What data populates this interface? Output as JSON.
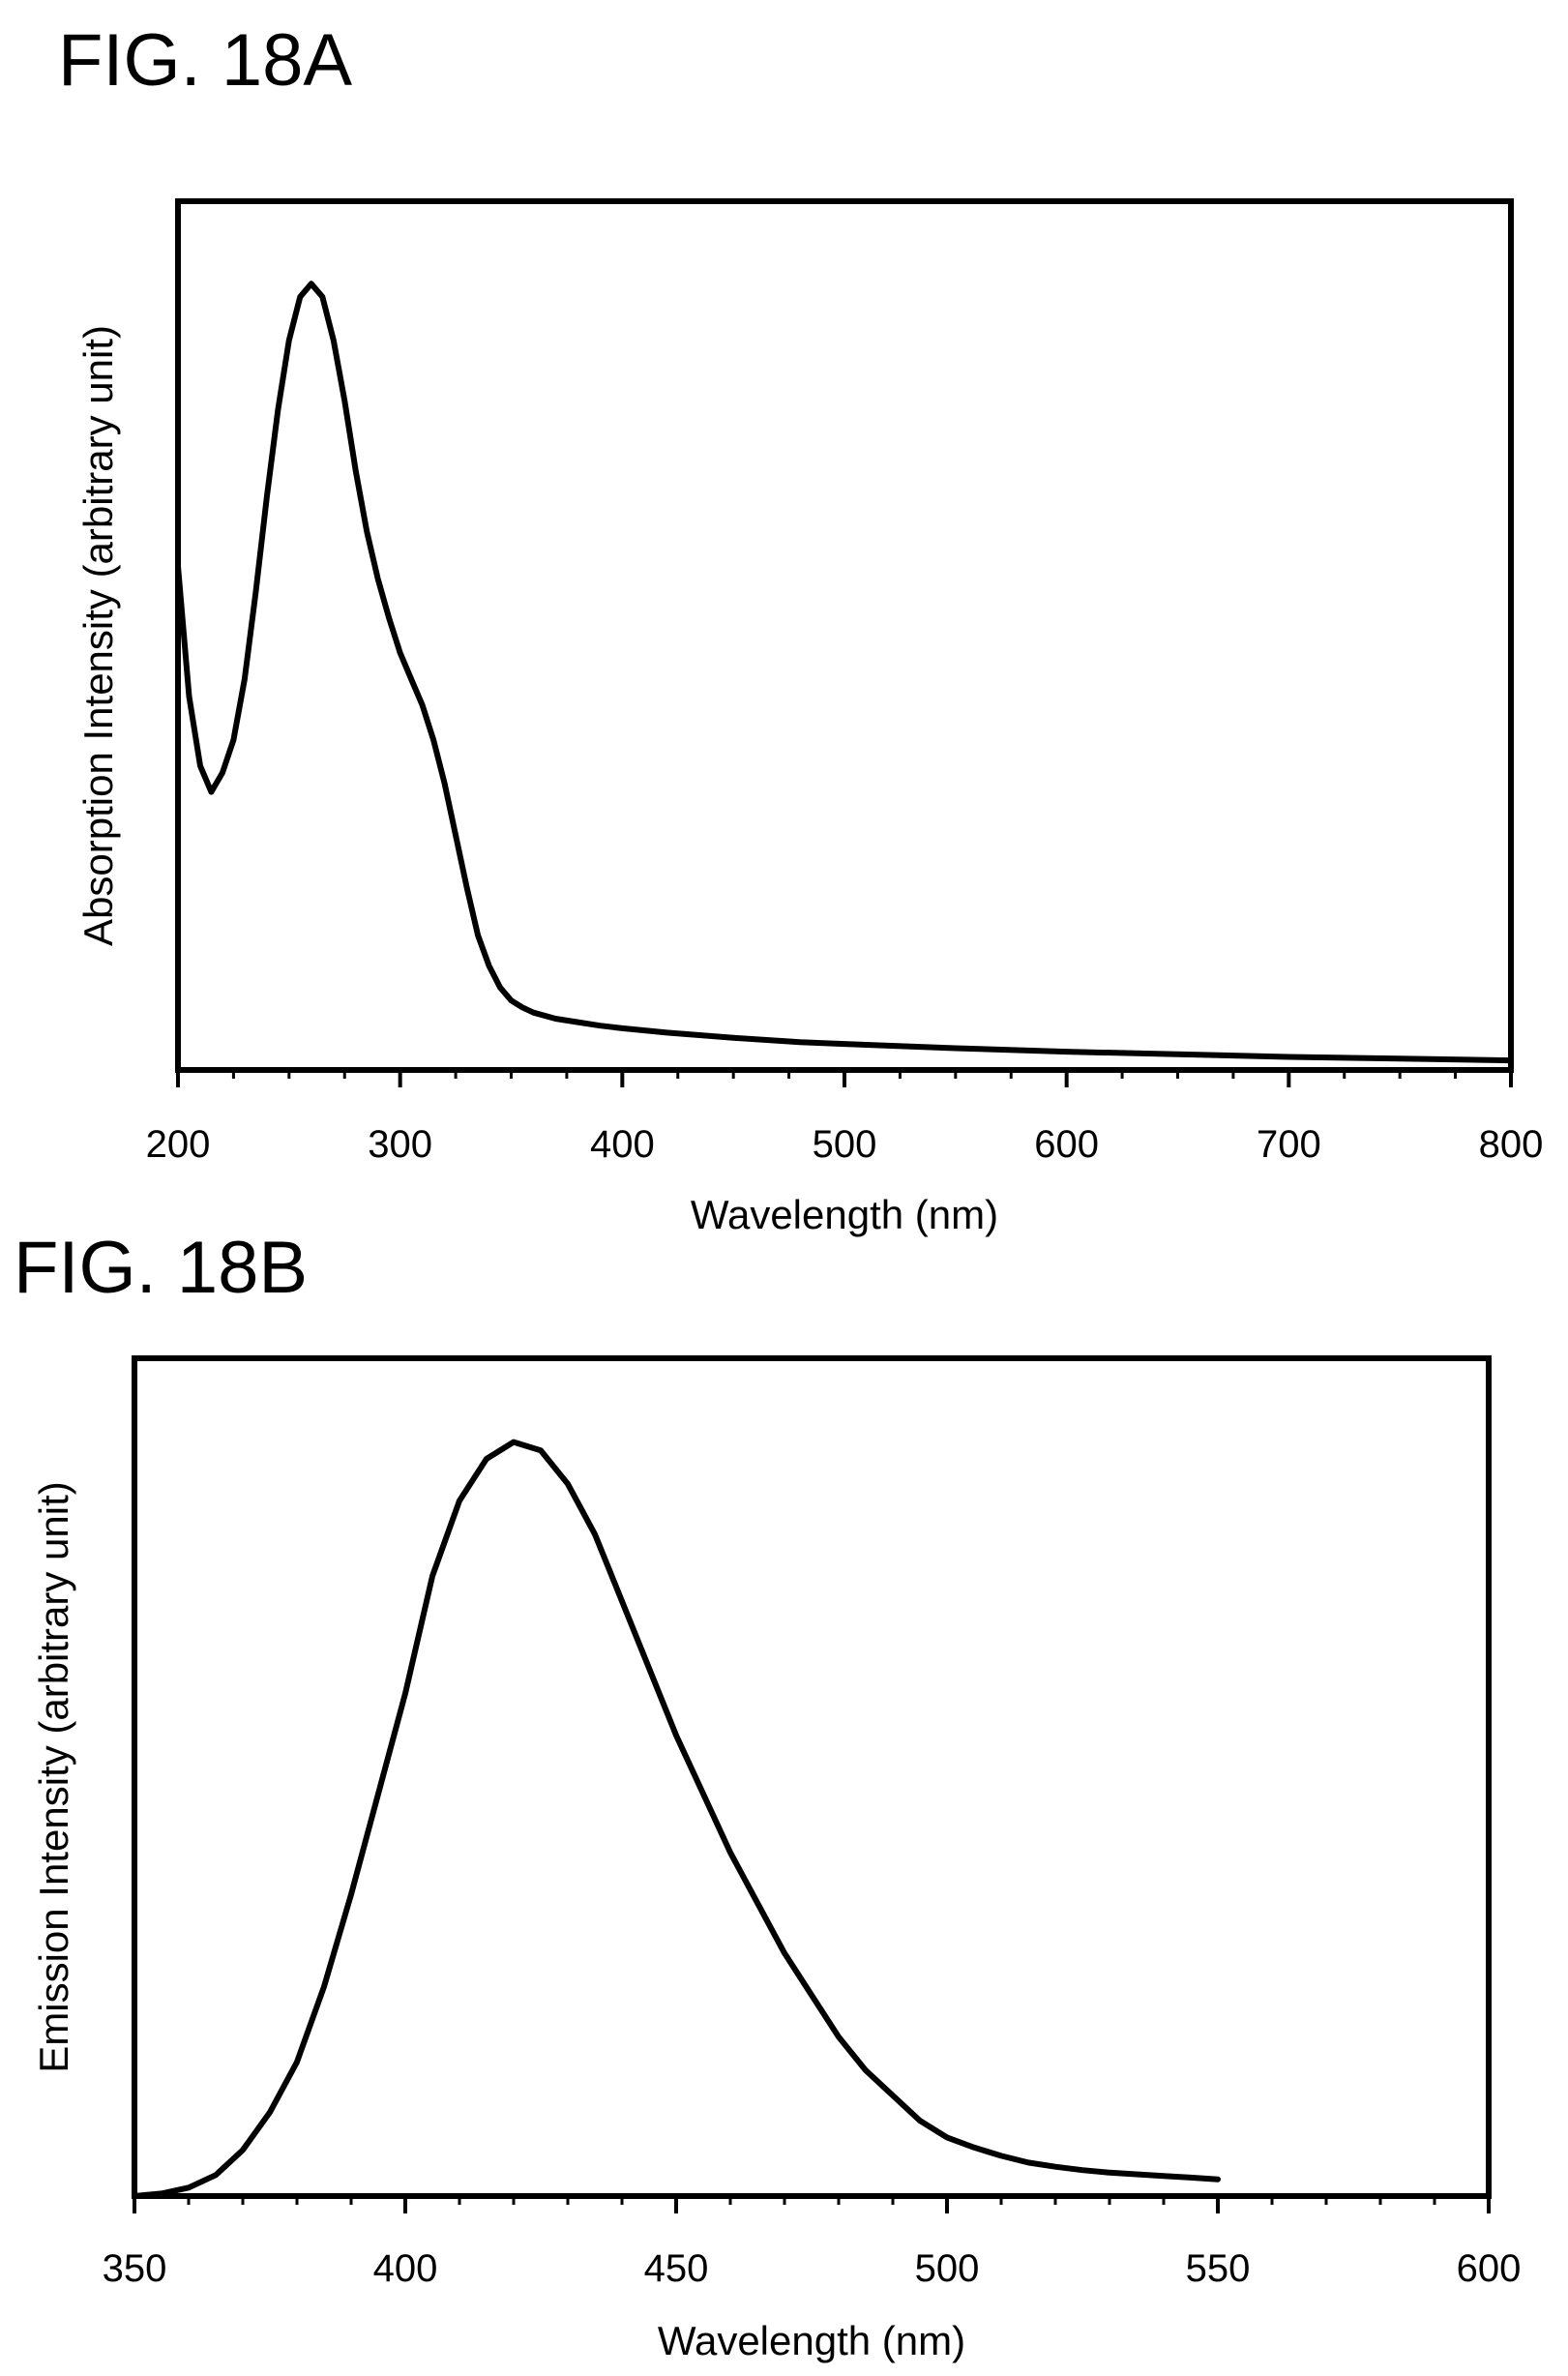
{
  "chart_data": [
    {
      "type": "line",
      "figure_label": "FIG. 18A",
      "title": "",
      "xlabel": "Wavelength (nm)",
      "ylabel": "Absorption Intensity (arbitrary unit)",
      "xlim": [
        200,
        800
      ],
      "ylim": [
        0,
        1
      ],
      "xticks": [
        200,
        300,
        400,
        500,
        600,
        700,
        800
      ],
      "minor_xtick_step": 25,
      "y_tick_labels": false,
      "grid": false,
      "legend": "none",
      "series": [
        {
          "x": [
            200,
            205,
            210,
            215,
            220,
            225,
            230,
            235,
            240,
            245,
            250,
            255,
            260,
            265,
            270,
            275,
            280,
            285,
            290,
            295,
            300,
            305,
            310,
            315,
            320,
            325,
            330,
            335,
            340,
            345,
            350,
            355,
            360,
            370,
            380,
            390,
            400,
            420,
            450,
            480,
            500,
            550,
            600,
            650,
            700,
            750,
            800
          ],
          "y": [
            0.58,
            0.43,
            0.35,
            0.32,
            0.342,
            0.38,
            0.45,
            0.55,
            0.66,
            0.76,
            0.84,
            0.89,
            0.905,
            0.89,
            0.84,
            0.77,
            0.69,
            0.62,
            0.565,
            0.52,
            0.48,
            0.45,
            0.42,
            0.38,
            0.33,
            0.27,
            0.21,
            0.155,
            0.12,
            0.095,
            0.08,
            0.072,
            0.066,
            0.059,
            0.055,
            0.051,
            0.048,
            0.043,
            0.037,
            0.032,
            0.03,
            0.025,
            0.021,
            0.018,
            0.015,
            0.013,
            0.011
          ]
        }
      ]
    },
    {
      "type": "line",
      "figure_label": "FIG. 18B",
      "title": "",
      "xlabel": "Wavelength (nm)",
      "ylabel": "Emission Intensity (arbitrary unit)",
      "xlim": [
        350,
        600
      ],
      "ylim": [
        0,
        1
      ],
      "xticks": [
        350,
        400,
        450,
        500,
        550,
        600
      ],
      "minor_xtick_step": 10,
      "y_tick_labels": false,
      "grid": false,
      "legend": "none",
      "series": [
        {
          "x": [
            350,
            355,
            360,
            365,
            370,
            375,
            380,
            385,
            390,
            395,
            400,
            405,
            410,
            415,
            420,
            425,
            430,
            435,
            440,
            445,
            450,
            455,
            460,
            465,
            470,
            475,
            480,
            485,
            490,
            495,
            500,
            505,
            510,
            515,
            520,
            525,
            530,
            535,
            540,
            545,
            550
          ],
          "y": [
            0.0,
            0.003,
            0.01,
            0.025,
            0.055,
            0.1,
            0.16,
            0.25,
            0.36,
            0.48,
            0.6,
            0.74,
            0.83,
            0.88,
            0.9,
            0.89,
            0.85,
            0.79,
            0.71,
            0.63,
            0.55,
            0.48,
            0.41,
            0.35,
            0.29,
            0.24,
            0.19,
            0.15,
            0.12,
            0.09,
            0.07,
            0.058,
            0.048,
            0.04,
            0.035,
            0.031,
            0.028,
            0.026,
            0.024,
            0.022,
            0.02
          ]
        }
      ]
    }
  ]
}
